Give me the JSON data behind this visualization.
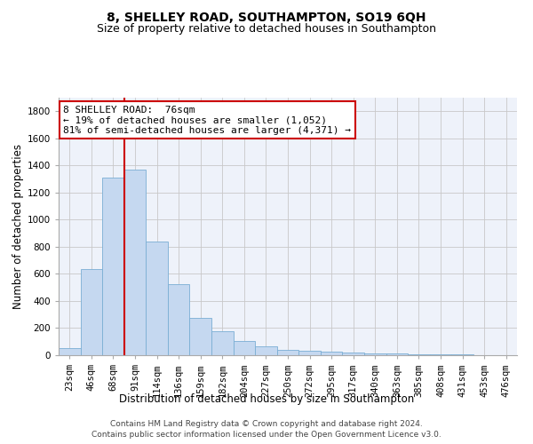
{
  "title": "8, SHELLEY ROAD, SOUTHAMPTON, SO19 6QH",
  "subtitle": "Size of property relative to detached houses in Southampton",
  "xlabel": "Distribution of detached houses by size in Southampton",
  "ylabel": "Number of detached properties",
  "categories": [
    "23sqm",
    "46sqm",
    "68sqm",
    "91sqm",
    "114sqm",
    "136sqm",
    "159sqm",
    "182sqm",
    "204sqm",
    "227sqm",
    "250sqm",
    "272sqm",
    "295sqm",
    "317sqm",
    "340sqm",
    "363sqm",
    "385sqm",
    "408sqm",
    "431sqm",
    "453sqm",
    "476sqm"
  ],
  "values": [
    50,
    635,
    1310,
    1370,
    840,
    525,
    275,
    175,
    105,
    65,
    40,
    35,
    27,
    18,
    12,
    10,
    8,
    6,
    4,
    3,
    2
  ],
  "bar_color": "#c5d8f0",
  "bar_edge_color": "#7aaed4",
  "vline_color": "#cc0000",
  "annotation_line1": "8 SHELLEY ROAD:  76sqm",
  "annotation_line2": "← 19% of detached houses are smaller (1,052)",
  "annotation_line3": "81% of semi-detached houses are larger (4,371) →",
  "annotation_box_color": "#ffffff",
  "annotation_box_edge": "#cc0000",
  "ylim": [
    0,
    1900
  ],
  "yticks": [
    0,
    200,
    400,
    600,
    800,
    1000,
    1200,
    1400,
    1600,
    1800
  ],
  "footer1": "Contains HM Land Registry data © Crown copyright and database right 2024.",
  "footer2": "Contains public sector information licensed under the Open Government Licence v3.0.",
  "bg_color": "#eef2fa",
  "grid_color": "#c8c8c8",
  "title_fontsize": 10,
  "subtitle_fontsize": 9,
  "tick_fontsize": 7.5,
  "ylabel_fontsize": 8.5,
  "xlabel_fontsize": 8.5,
  "annotation_fontsize": 8
}
